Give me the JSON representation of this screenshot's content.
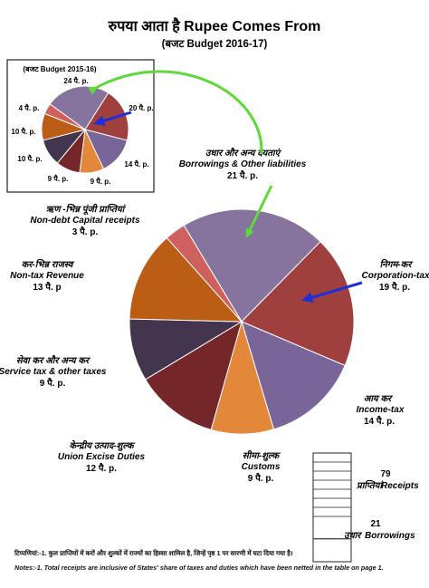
{
  "title": "रुपया आता है Rupee Comes From",
  "subtitle": "(बजट Budget 2016-17)",
  "inset_title": "(बजट Budget 2015-16)",
  "colors": {
    "borrowings": "#86749f",
    "corporation": "#a0403e",
    "income": "#7a6598",
    "customs": "#e3873a",
    "excise": "#742628",
    "service": "#44354f",
    "nontax": "#bb5d14",
    "nondebt": "#d06060",
    "arrow_green": "#5ed83a",
    "arrow_blue": "#1e2fd9"
  },
  "chart_data": [
    {
      "type": "pie",
      "title": "रुपया आता है Rupee Comes From",
      "subtitle": "(बजट Budget 2016-17)",
      "unit": "पै. p.",
      "slices": [
        {
          "key": "borrowings",
          "hi": "उधार और अन्य देयताएं",
          "en": "Borrowings & Other liabilities",
          "value_label": "21 पै. p.",
          "value": 21
        },
        {
          "key": "corporation",
          "hi": "निगम-कर",
          "en": "Corporation-tax",
          "value_label": "19 पै. p.",
          "value": 19
        },
        {
          "key": "income",
          "hi": "आय कर",
          "en": "Income-tax",
          "value_label": "14 पै. p.",
          "value": 14
        },
        {
          "key": "customs",
          "hi": "सीमा-शुल्क",
          "en": "Customs",
          "value_label": "9 पै. p.",
          "value": 9
        },
        {
          "key": "excise",
          "hi": "केन्द्रीय उत्पाद-शुल्क",
          "en": "Union Excise Duties",
          "value_label": "12 पै. p.",
          "value": 12
        },
        {
          "key": "service",
          "hi": "सेवा कर और अन्य कर",
          "en": "Service tax & other taxes",
          "value_label": "9 पै. p.",
          "value": 9
        },
        {
          "key": "nontax",
          "hi": "कर-भिन्न राजस्व",
          "en": "Non-tax Revenue",
          "value_label": "13 पै. p",
          "value": 13
        },
        {
          "key": "nondebt",
          "hi": "ऋण -भिन्न पूंजी प्राप्तियां",
          "en": "Non-debt Capital receipts",
          "value_label": "3 पै. p.",
          "value": 3
        }
      ]
    },
    {
      "type": "pie",
      "title": "(बजट Budget 2015-16)",
      "slices": [
        {
          "key": "borrowings",
          "value_label": "24 पै. p.",
          "value": 24
        },
        {
          "key": "corporation",
          "value_label": "20 पै. p.",
          "value": 20
        },
        {
          "key": "income",
          "value_label": "14 पै. p.",
          "value": 14
        },
        {
          "key": "customs",
          "value_label": "9 पै. p.",
          "value": 9
        },
        {
          "key": "excise",
          "value_label": "9 पै. p.",
          "value": 9
        },
        {
          "key": "service",
          "value_label": "10 पै. p.",
          "value": 10
        },
        {
          "key": "nontax",
          "value_label": "10 पै. p.",
          "value": 10
        },
        {
          "key": "nondebt",
          "value_label": "4 पै. p.",
          "value": 4
        }
      ]
    },
    {
      "type": "bar",
      "stacked": true,
      "series": [
        {
          "hi": "प्राप्तियां",
          "en": "Receipts",
          "value": 79
        },
        {
          "hi": "उधार",
          "en": "Borrowings",
          "value": 21
        }
      ]
    }
  ],
  "notes": {
    "hindi": "टिप्पणियां:-1. कुल प्राप्तियों में करों और शुल्कों में राज्यों का हिस्सा शामिल है, जिन्हें पृष्ठ 1 पर सारणी में घटा दिया गया है।",
    "english": "Notes:-1. Total receipts are inclusive of States' share of taxes and duties which have been netted in the table on page 1."
  }
}
